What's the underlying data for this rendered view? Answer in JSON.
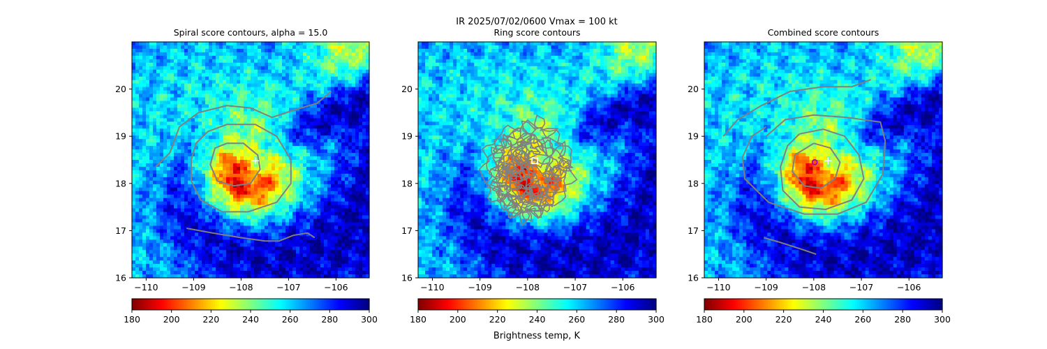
{
  "suptitle": "IR  2025/07/02/0600    Vmax = 100 kt",
  "colorbar_label": "Brightness temp, K",
  "chart_data": [
    {
      "type": "heatmap",
      "title": "Spiral score contours, alpha = 15.0",
      "xlabel": "",
      "ylabel": "",
      "xlim": [
        -110.3,
        -105.3
      ],
      "ylim": [
        16.0,
        21.0
      ],
      "xticks": [
        -110,
        -109,
        -108,
        -107,
        -106
      ],
      "yticks": [
        16,
        17,
        18,
        19,
        20
      ],
      "colormap": "jet_r",
      "colorbar": {
        "range": [
          180,
          300
        ],
        "ticks": [
          180,
          200,
          220,
          240,
          260,
          280,
          300
        ]
      },
      "contour_color": "#808080",
      "contours": [
        {
          "points": [
            [
              -108.3,
              18.85
            ],
            [
              -107.95,
              18.85
            ],
            [
              -107.65,
              18.6
            ],
            [
              -107.6,
              18.3
            ],
            [
              -107.8,
              18.0
            ],
            [
              -108.15,
              17.95
            ],
            [
              -108.5,
              18.05
            ],
            [
              -108.65,
              18.4
            ],
            [
              -108.55,
              18.75
            ],
            [
              -108.3,
              18.85
            ]
          ]
        },
        {
          "points": [
            [
              -108.7,
              19.1
            ],
            [
              -108.3,
              19.25
            ],
            [
              -107.7,
              19.25
            ],
            [
              -107.25,
              19.0
            ],
            [
              -106.95,
              18.5
            ],
            [
              -106.95,
              18.0
            ],
            [
              -107.25,
              17.6
            ],
            [
              -107.85,
              17.4
            ],
            [
              -108.4,
              17.4
            ],
            [
              -108.85,
              17.65
            ],
            [
              -109.05,
              18.05
            ],
            [
              -109.05,
              18.5
            ],
            [
              -108.95,
              18.85
            ],
            [
              -108.7,
              19.1
            ]
          ]
        },
        {
          "points": [
            [
              -109.8,
              18.35
            ],
            [
              -109.5,
              18.65
            ],
            [
              -109.3,
              19.2
            ],
            [
              -108.9,
              19.5
            ],
            [
              -108.3,
              19.65
            ],
            [
              -107.8,
              19.6
            ],
            [
              -107.35,
              19.4
            ],
            [
              -106.9,
              19.55
            ],
            [
              -106.4,
              19.7
            ],
            [
              -106.1,
              19.95
            ]
          ]
        },
        {
          "points": [
            [
              -109.15,
              17.05
            ],
            [
              -108.6,
              16.95
            ],
            [
              -108.0,
              16.85
            ],
            [
              -107.5,
              16.78
            ],
            [
              -107.2,
              16.78
            ],
            [
              -106.9,
              16.9
            ],
            [
              -106.6,
              16.95
            ],
            [
              -106.45,
              16.85
            ]
          ]
        }
      ],
      "markers": [
        {
          "name": "center-estimate",
          "x": -107.7,
          "y": 18.48,
          "symbol": "+",
          "color": "#ffffff"
        }
      ]
    },
    {
      "type": "heatmap",
      "title": "Ring score contours",
      "xlabel": "",
      "ylabel": "",
      "xlim": [
        -110.3,
        -105.3
      ],
      "ylim": [
        16.0,
        21.0
      ],
      "xticks": [
        -110,
        -109,
        -108,
        -107,
        -106
      ],
      "yticks": [
        16,
        17,
        18,
        19,
        20
      ],
      "colormap": "jet_r",
      "colorbar": {
        "range": [
          180,
          300
        ],
        "ticks": [
          180,
          200,
          220,
          240,
          260,
          280,
          300
        ]
      },
      "contour_color": "#808080",
      "contour_region": {
        "center": [
          -108.0,
          18.3
        ],
        "radius_x_deg": 0.95,
        "radius_y_deg": 0.95
      },
      "markers": [
        {
          "name": "ring-center",
          "x": -107.85,
          "y": 18.48,
          "symbol": "square",
          "color": "#ffffff"
        }
      ]
    },
    {
      "type": "heatmap",
      "title": "Combined score contours",
      "xlabel": "",
      "ylabel": "",
      "xlim": [
        -110.3,
        -105.3
      ],
      "ylim": [
        16.0,
        21.0
      ],
      "xticks": [
        -110,
        -109,
        -108,
        -107,
        -106
      ],
      "yticks": [
        16,
        17,
        18,
        19,
        20
      ],
      "colormap": "jet_r",
      "colorbar": {
        "range": [
          180,
          300
        ],
        "ticks": [
          180,
          200,
          220,
          240,
          260,
          280,
          300
        ]
      },
      "contour_color": "#808080",
      "contours": [
        {
          "points": [
            [
              -108.0,
              18.85
            ],
            [
              -107.65,
              18.75
            ],
            [
              -107.45,
              18.45
            ],
            [
              -107.55,
              18.1
            ],
            [
              -107.85,
              17.9
            ],
            [
              -108.2,
              17.95
            ],
            [
              -108.45,
              18.25
            ],
            [
              -108.4,
              18.6
            ],
            [
              -108.0,
              18.85
            ]
          ]
        },
        {
          "points": [
            [
              -108.3,
              19.05
            ],
            [
              -107.8,
              19.15
            ],
            [
              -107.35,
              19.0
            ],
            [
              -107.05,
              18.6
            ],
            [
              -106.95,
              18.1
            ],
            [
              -107.2,
              17.65
            ],
            [
              -107.75,
              17.45
            ],
            [
              -108.3,
              17.5
            ],
            [
              -108.65,
              17.85
            ],
            [
              -108.7,
              18.35
            ],
            [
              -108.55,
              18.8
            ],
            [
              -108.3,
              19.05
            ]
          ]
        },
        {
          "points": [
            [
              -109.0,
              19.0
            ],
            [
              -108.6,
              19.35
            ],
            [
              -108.0,
              19.45
            ],
            [
              -107.3,
              19.4
            ],
            [
              -106.6,
              19.3
            ],
            [
              -106.5,
              18.9
            ],
            [
              -106.55,
              18.2
            ],
            [
              -106.9,
              17.6
            ],
            [
              -107.5,
              17.35
            ],
            [
              -108.2,
              17.35
            ],
            [
              -108.95,
              17.6
            ],
            [
              -109.45,
              18.1
            ],
            [
              -109.5,
              18.55
            ],
            [
              -109.3,
              19.0
            ],
            [
              -109.0,
              19.2
            ]
          ]
        },
        {
          "points": [
            [
              -109.9,
              19.0
            ],
            [
              -109.6,
              19.35
            ],
            [
              -109.1,
              19.65
            ],
            [
              -108.5,
              19.95
            ],
            [
              -107.8,
              20.05
            ],
            [
              -107.2,
              20.05
            ],
            [
              -106.8,
              20.2
            ]
          ]
        },
        {
          "points": [
            [
              -109.05,
              16.85
            ],
            [
              -108.7,
              16.75
            ],
            [
              -108.3,
              16.62
            ],
            [
              -107.95,
              16.5
            ]
          ]
        }
      ],
      "markers": [
        {
          "name": "combined-center",
          "x": -107.98,
          "y": 18.45,
          "symbol": "circle",
          "color": "#a000c8"
        },
        {
          "name": "center-estimate",
          "x": -107.7,
          "y": 18.48,
          "symbol": "+",
          "color": "#ffffff"
        }
      ]
    }
  ]
}
